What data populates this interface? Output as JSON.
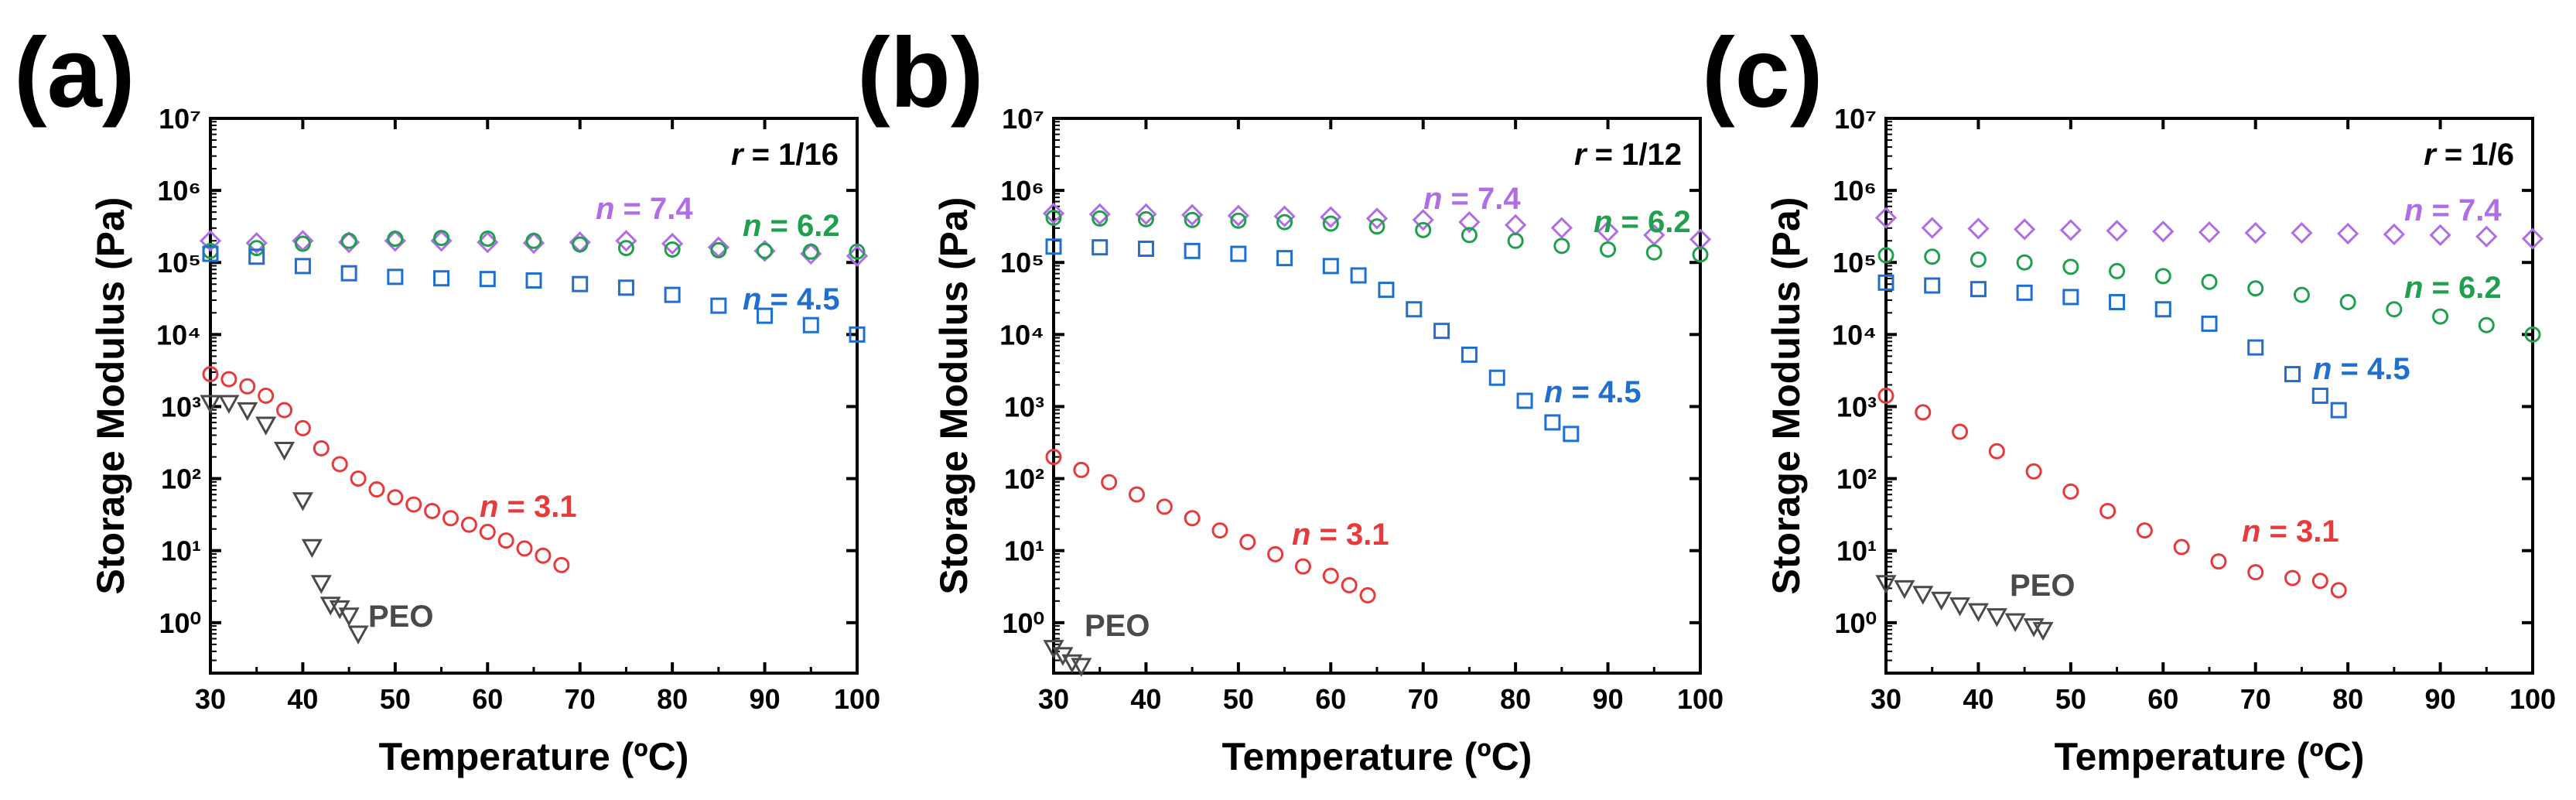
{
  "chart_data": [
    {
      "type": "scatter",
      "panel_label": "(a)",
      "ratio_label": "r = 1/16",
      "ratio_value": "1/16",
      "xlabel": "Temperature (ºC)",
      "ylabel": "Storage Modulus (Pa)",
      "xlim": [
        30,
        100
      ],
      "ylim_log10": [
        -0.7,
        7
      ],
      "xticks": [
        "30",
        "40",
        "50",
        "60",
        "70",
        "80",
        "90",
        "100"
      ],
      "yticks": [
        "10⁰",
        "10¹",
        "10²",
        "10³",
        "10⁴",
        "10⁵",
        "10⁶",
        "10⁷"
      ],
      "series": [
        {
          "name": "n = 7.4",
          "n_value": "7.4",
          "color": "#b06ee6",
          "marker": "diamond",
          "x": [
            30,
            35,
            40,
            45,
            50,
            55,
            60,
            65,
            70,
            75,
            80,
            85,
            90,
            95,
            100
          ],
          "y_log10": [
            5.3,
            5.27,
            5.3,
            5.28,
            5.3,
            5.3,
            5.28,
            5.27,
            5.28,
            5.3,
            5.26,
            5.21,
            5.16,
            5.12,
            5.09
          ]
        },
        {
          "name": "n = 6.2",
          "n_value": "6.2",
          "color": "#20a04e",
          "marker": "circle",
          "x": [
            30,
            35,
            40,
            45,
            50,
            55,
            60,
            65,
            70,
            75,
            80,
            85,
            90,
            95,
            100
          ],
          "y_log10": [
            5.16,
            5.2,
            5.26,
            5.3,
            5.33,
            5.34,
            5.33,
            5.3,
            5.25,
            5.2,
            5.18,
            5.17,
            5.16,
            5.15,
            5.15
          ]
        },
        {
          "name": "n = 4.5",
          "n_value": "4.5",
          "color": "#1f6fd1",
          "marker": "square",
          "x": [
            30,
            35,
            40,
            45,
            50,
            55,
            60,
            65,
            70,
            75,
            80,
            85,
            90,
            95,
            100
          ],
          "y_log10": [
            5.12,
            5.08,
            4.95,
            4.85,
            4.8,
            4.78,
            4.77,
            4.75,
            4.7,
            4.65,
            4.55,
            4.4,
            4.26,
            4.13,
            4.0
          ]
        },
        {
          "name": "n = 3.1",
          "n_value": "3.1",
          "color": "#e8393b",
          "marker": "circle",
          "x": [
            30,
            32,
            34,
            36,
            38,
            40,
            42,
            44,
            46,
            48,
            50,
            52,
            54,
            56,
            58,
            60,
            62,
            64,
            66,
            68
          ],
          "y_log10": [
            3.45,
            3.38,
            3.28,
            3.15,
            2.95,
            2.7,
            2.42,
            2.2,
            2.0,
            1.85,
            1.74,
            1.64,
            1.55,
            1.45,
            1.36,
            1.26,
            1.14,
            1.03,
            0.93,
            0.8
          ]
        },
        {
          "name": "PEO",
          "n_value": "",
          "color": "#4a4a4a",
          "marker": "triangle-down",
          "x": [
            30,
            32,
            34,
            36,
            38,
            40,
            41,
            42,
            43,
            44,
            45,
            46
          ],
          "y_log10": [
            3.05,
            3.05,
            2.95,
            2.75,
            2.4,
            1.7,
            1.05,
            0.55,
            0.25,
            0.2,
            0.1,
            -0.15
          ]
        }
      ]
    },
    {
      "type": "scatter",
      "panel_label": "(b)",
      "ratio_label": "r = 1/12",
      "ratio_value": "1/12",
      "xlabel": "Temperature (ºC)",
      "ylabel": "Storage Modulus (Pa)",
      "xlim": [
        30,
        100
      ],
      "ylim_log10": [
        -0.7,
        7
      ],
      "xticks": [
        "30",
        "40",
        "50",
        "60",
        "70",
        "80",
        "90",
        "100"
      ],
      "yticks": [
        "10⁰",
        "10¹",
        "10²",
        "10³",
        "10⁴",
        "10⁵",
        "10⁶",
        "10⁷"
      ],
      "series": [
        {
          "name": "n = 7.4",
          "n_value": "7.4",
          "color": "#b06ee6",
          "marker": "diamond",
          "x": [
            30,
            35,
            40,
            45,
            50,
            55,
            60,
            65,
            70,
            75,
            80,
            85,
            90,
            95,
            100
          ],
          "y_log10": [
            5.68,
            5.67,
            5.67,
            5.66,
            5.65,
            5.64,
            5.63,
            5.61,
            5.59,
            5.56,
            5.52,
            5.48,
            5.43,
            5.38,
            5.32
          ]
        },
        {
          "name": "n = 6.2",
          "n_value": "6.2",
          "color": "#20a04e",
          "marker": "circle",
          "x": [
            30,
            35,
            40,
            45,
            50,
            55,
            60,
            65,
            70,
            75,
            80,
            85,
            90,
            95,
            100
          ],
          "y_log10": [
            5.62,
            5.61,
            5.6,
            5.59,
            5.58,
            5.56,
            5.54,
            5.5,
            5.45,
            5.38,
            5.3,
            5.23,
            5.18,
            5.14,
            5.11
          ]
        },
        {
          "name": "n = 4.5",
          "n_value": "4.5",
          "color": "#1f6fd1",
          "marker": "square",
          "x": [
            30,
            35,
            40,
            45,
            50,
            55,
            60,
            63,
            66,
            69,
            72,
            75,
            78,
            81,
            84,
            86
          ],
          "y_log10": [
            5.22,
            5.21,
            5.19,
            5.16,
            5.12,
            5.06,
            4.95,
            4.82,
            4.62,
            4.35,
            4.05,
            3.72,
            3.4,
            3.08,
            2.78,
            2.62
          ]
        },
        {
          "name": "n = 3.1",
          "n_value": "3.1",
          "color": "#e8393b",
          "marker": "circle",
          "x": [
            30,
            33,
            36,
            39,
            42,
            45,
            48,
            51,
            54,
            57,
            60,
            62,
            64
          ],
          "y_log10": [
            2.3,
            2.12,
            1.95,
            1.78,
            1.61,
            1.45,
            1.28,
            1.12,
            0.95,
            0.78,
            0.65,
            0.52,
            0.38
          ]
        },
        {
          "name": "PEO",
          "n_value": "",
          "color": "#4a4a4a",
          "marker": "triangle-down",
          "x": [
            30,
            31,
            32,
            33
          ],
          "y_log10": [
            -0.35,
            -0.45,
            -0.55,
            -0.6
          ]
        }
      ]
    },
    {
      "type": "scatter",
      "panel_label": "(c)",
      "ratio_label": "r = 1/6",
      "ratio_value": "1/6",
      "xlabel": "Temperature (ºC)",
      "ylabel": "Storage Modulus (Pa)",
      "xlim": [
        30,
        100
      ],
      "ylim_log10": [
        -0.7,
        7
      ],
      "xticks": [
        "30",
        "40",
        "50",
        "60",
        "70",
        "80",
        "90",
        "100"
      ],
      "yticks": [
        "10⁰",
        "10¹",
        "10²",
        "10³",
        "10⁴",
        "10⁵",
        "10⁶",
        "10⁷"
      ],
      "series": [
        {
          "name": "n = 7.4",
          "n_value": "7.4",
          "color": "#b06ee6",
          "marker": "diamond",
          "x": [
            30,
            35,
            40,
            45,
            50,
            55,
            60,
            65,
            70,
            75,
            80,
            85,
            90,
            95,
            100
          ],
          "y_log10": [
            5.62,
            5.48,
            5.47,
            5.46,
            5.45,
            5.44,
            5.43,
            5.42,
            5.41,
            5.41,
            5.4,
            5.39,
            5.38,
            5.36,
            5.33
          ]
        },
        {
          "name": "n = 6.2",
          "n_value": "6.2",
          "color": "#20a04e",
          "marker": "circle",
          "x": [
            30,
            35,
            40,
            45,
            50,
            55,
            60,
            65,
            70,
            75,
            80,
            85,
            90,
            95,
            100
          ],
          "y_log10": [
            5.1,
            5.08,
            5.04,
            5.0,
            4.94,
            4.88,
            4.81,
            4.73,
            4.64,
            4.55,
            4.45,
            4.35,
            4.25,
            4.13,
            4.0
          ]
        },
        {
          "name": "n = 4.5",
          "n_value": "4.5",
          "color": "#1f6fd1",
          "marker": "square",
          "x": [
            30,
            35,
            40,
            45,
            50,
            55,
            60,
            65,
            70,
            74,
            77,
            79
          ],
          "y_log10": [
            4.72,
            4.68,
            4.63,
            4.58,
            4.52,
            4.45,
            4.35,
            4.15,
            3.82,
            3.45,
            3.15,
            2.95
          ]
        },
        {
          "name": "n = 3.1",
          "n_value": "3.1",
          "color": "#e8393b",
          "marker": "circle",
          "x": [
            30,
            34,
            38,
            42,
            46,
            50,
            54,
            58,
            62,
            66,
            70,
            74,
            77,
            79
          ],
          "y_log10": [
            3.15,
            2.92,
            2.65,
            2.38,
            2.1,
            1.82,
            1.55,
            1.28,
            1.05,
            0.85,
            0.7,
            0.62,
            0.58,
            0.45
          ]
        },
        {
          "name": "PEO",
          "n_value": "",
          "color": "#4a4a4a",
          "marker": "triangle-down",
          "x": [
            30,
            32,
            34,
            36,
            38,
            40,
            42,
            44,
            46,
            47
          ],
          "y_log10": [
            0.55,
            0.48,
            0.4,
            0.32,
            0.24,
            0.16,
            0.09,
            0.02,
            -0.05,
            -0.1
          ]
        }
      ]
    }
  ]
}
